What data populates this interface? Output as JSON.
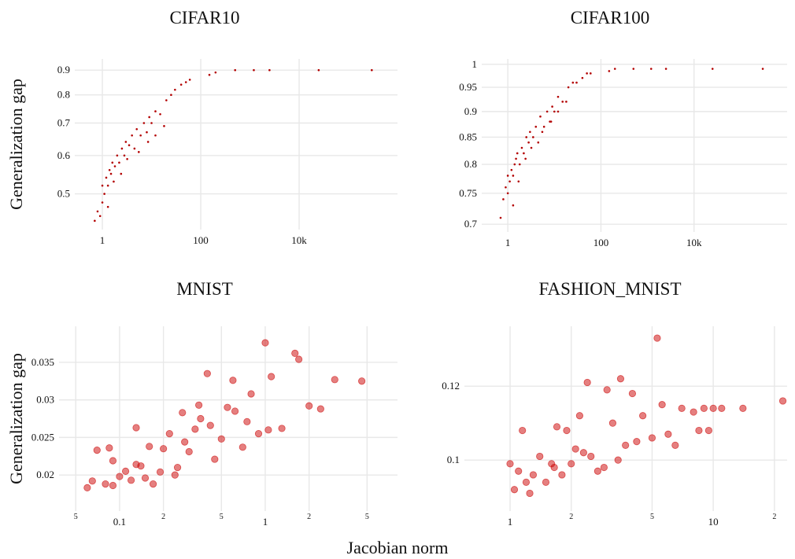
{
  "xlabel": "Jacobian norm",
  "chart_data": [
    {
      "type": "scatter",
      "title": "CIFAR10",
      "ylabel": "Generalization gap",
      "color": "#b30000",
      "xlog": true,
      "ylog": true,
      "grid": true,
      "xlim": [
        0.275,
        1000000
      ],
      "ylim": [
        0.422,
        0.949
      ],
      "xticks": [
        1,
        100,
        {
          "value": 10000,
          "label": "10k"
        }
      ],
      "yticks": [
        0.5,
        0.6,
        0.7,
        0.8,
        0.9
      ],
      "x": [
        0.7,
        0.8,
        0.9,
        1.0,
        1.0,
        1.1,
        1.2,
        1.3,
        1.4,
        1.5,
        1.6,
        1.8,
        2.0,
        2.2,
        2.5,
        2.8,
        3,
        3.5,
        4,
        4.5,
        5,
        6,
        7,
        8,
        9,
        10,
        12,
        15,
        20,
        25,
        30,
        40,
        50,
        60,
        150,
        200,
        500,
        1200,
        2500,
        25000,
        300000,
        1.3,
        1.7,
        2.4,
        3.2,
        5.5,
        8.5,
        12,
        18
      ],
      "values": [
        0.44,
        0.46,
        0.45,
        0.48,
        0.52,
        0.5,
        0.54,
        0.52,
        0.56,
        0.55,
        0.58,
        0.57,
        0.6,
        0.58,
        0.62,
        0.6,
        0.64,
        0.63,
        0.66,
        0.62,
        0.68,
        0.66,
        0.7,
        0.67,
        0.72,
        0.7,
        0.74,
        0.73,
        0.78,
        0.8,
        0.82,
        0.84,
        0.85,
        0.86,
        0.88,
        0.89,
        0.9,
        0.9,
        0.9,
        0.9,
        0.9,
        0.47,
        0.53,
        0.55,
        0.59,
        0.61,
        0.64,
        0.66,
        0.69
      ]
    },
    {
      "type": "scatter",
      "title": "CIFAR100",
      "color": "#b30000",
      "xlog": true,
      "ylog": true,
      "grid": true,
      "xlim": [
        0.275,
        1000000
      ],
      "ylim": [
        0.688,
        1.012
      ],
      "xticks": [
        1,
        100,
        {
          "value": 10000,
          "label": "10k"
        }
      ],
      "yticks": [
        0.7,
        0.75,
        0.8,
        0.85,
        0.9,
        0.95,
        1
      ],
      "x": [
        0.7,
        0.8,
        0.9,
        1.0,
        1.0,
        1.1,
        1.2,
        1.3,
        1.4,
        1.5,
        1.6,
        1.8,
        2.0,
        2.2,
        2.5,
        2.8,
        3,
        3.5,
        4,
        4.5,
        5,
        6,
        7,
        8,
        9,
        10,
        12,
        15,
        20,
        25,
        30,
        40,
        50,
        60,
        150,
        200,
        500,
        1200,
        2500,
        25000,
        300000,
        1.3,
        1.7,
        2.4,
        3.2,
        5.5,
        8.5,
        12,
        18
      ],
      "values": [
        0.71,
        0.74,
        0.76,
        0.75,
        0.78,
        0.77,
        0.79,
        0.78,
        0.8,
        0.81,
        0.82,
        0.8,
        0.83,
        0.82,
        0.85,
        0.84,
        0.86,
        0.85,
        0.87,
        0.84,
        0.89,
        0.87,
        0.9,
        0.88,
        0.91,
        0.9,
        0.93,
        0.92,
        0.95,
        0.96,
        0.96,
        0.97,
        0.98,
        0.98,
        0.985,
        0.99,
        0.99,
        0.99,
        0.99,
        0.99,
        0.99,
        0.73,
        0.77,
        0.81,
        0.83,
        0.86,
        0.88,
        0.9,
        0.92
      ]
    },
    {
      "type": "scatter",
      "title": "MNIST",
      "ylabel": "Generalization gap",
      "color": "#cc0000",
      "xlog": true,
      "ylog": false,
      "grid": true,
      "xlim": [
        0.0384,
        8.09
      ],
      "ylim": [
        0.0152,
        0.0398
      ],
      "xticks": [
        {
          "value": 0.05,
          "label": "5"
        },
        0.1,
        {
          "value": 0.2,
          "label": "2"
        },
        {
          "value": 0.5,
          "label": "5"
        },
        1,
        {
          "value": 2,
          "label": "2"
        },
        {
          "value": 5,
          "label": "5"
        }
      ],
      "yticks": [
        0.02,
        0.025,
        0.03,
        0.035
      ],
      "x": [
        0.06,
        0.065,
        0.07,
        0.08,
        0.085,
        0.09,
        0.1,
        0.11,
        0.12,
        0.13,
        0.14,
        0.15,
        0.17,
        0.19,
        0.2,
        0.22,
        0.25,
        0.27,
        0.3,
        0.33,
        0.35,
        0.4,
        0.45,
        0.5,
        0.55,
        0.6,
        0.7,
        0.75,
        0.8,
        0.9,
        1.0,
        1.05,
        1.1,
        1.3,
        1.6,
        1.7,
        2.0,
        2.4,
        3.0,
        4.6,
        0.13,
        0.16,
        0.28,
        0.42,
        0.62,
        0.09,
        0.24,
        0.36
      ],
      "values": [
        0.0183,
        0.0192,
        0.0233,
        0.0188,
        0.0236,
        0.0186,
        0.0198,
        0.0205,
        0.0193,
        0.0263,
        0.0212,
        0.0196,
        0.0188,
        0.0204,
        0.0235,
        0.0255,
        0.021,
        0.0283,
        0.0231,
        0.0261,
        0.0293,
        0.0335,
        0.0221,
        0.0248,
        0.029,
        0.0326,
        0.0237,
        0.0271,
        0.0308,
        0.0255,
        0.0376,
        0.026,
        0.0331,
        0.0262,
        0.0362,
        0.0354,
        0.0292,
        0.0288,
        0.0327,
        0.0325,
        0.0214,
        0.0238,
        0.0244,
        0.0266,
        0.0285,
        0.0219,
        0.02,
        0.0275
      ]
    },
    {
      "type": "scatter",
      "title": "FASHION_MNIST",
      "color": "#cc0000",
      "xlog": true,
      "ylog": false,
      "grid": true,
      "xlim": [
        0.596,
        23.1
      ],
      "ylim": [
        0.0862,
        0.1362
      ],
      "xticks": [
        1,
        {
          "value": 2,
          "label": "2"
        },
        {
          "value": 5,
          "label": "5"
        },
        10,
        {
          "value": 20,
          "label": "2"
        }
      ],
      "yticks": [
        0.1,
        0.12
      ],
      "x": [
        1.0,
        1.05,
        1.1,
        1.15,
        1.2,
        1.3,
        1.4,
        1.5,
        1.6,
        1.7,
        1.8,
        1.9,
        2.0,
        2.1,
        2.2,
        2.4,
        2.5,
        2.7,
        3.0,
        3.2,
        3.5,
        3.7,
        4.0,
        4.5,
        5.0,
        5.3,
        5.6,
        6.0,
        7.0,
        8.0,
        8.5,
        9.0,
        9.5,
        10,
        11,
        14,
        22,
        1.25,
        1.65,
        2.3,
        2.9,
        3.4,
        4.2,
        6.5
      ],
      "values": [
        0.099,
        0.092,
        0.097,
        0.108,
        0.094,
        0.096,
        0.101,
        0.094,
        0.099,
        0.109,
        0.096,
        0.108,
        0.099,
        0.103,
        0.112,
        0.121,
        0.101,
        0.097,
        0.119,
        0.11,
        0.122,
        0.104,
        0.118,
        0.112,
        0.106,
        0.133,
        0.115,
        0.107,
        0.114,
        0.113,
        0.108,
        0.114,
        0.108,
        0.114,
        0.114,
        0.114,
        0.116,
        0.091,
        0.098,
        0.102,
        0.098,
        0.1,
        0.105,
        0.104
      ]
    }
  ]
}
